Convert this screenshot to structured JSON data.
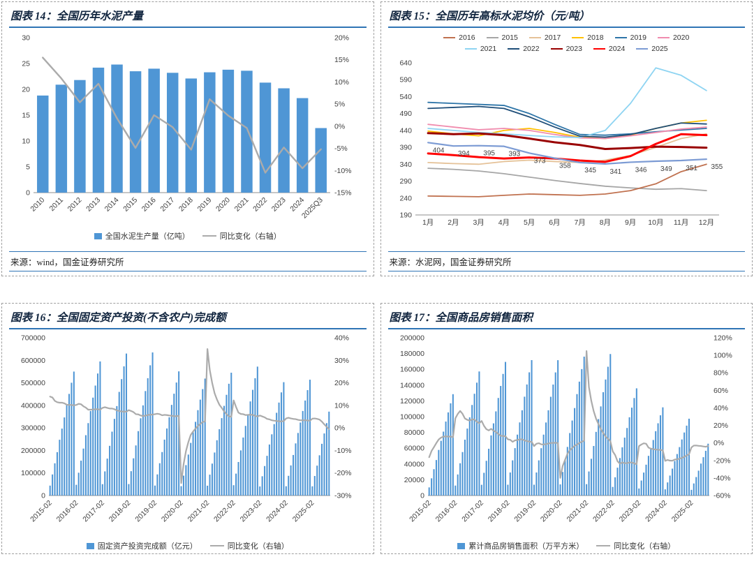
{
  "colors": {
    "accent_blue": "#2e74b5",
    "bar_blue": "#4f96d5",
    "line_gray": "#ababab",
    "title_color": "#10243e"
  },
  "panels": [
    {
      "title": "图表 14：全国历年水泥产量",
      "source": "来源：wind，国金证券研究所"
    },
    {
      "title": "图表 15：全国历年高标水泥均价（元/吨）",
      "source": "来源：水泥网，国金证券研究所"
    },
    {
      "title": "图表 16：全国固定资产投资(不含农户)完成额",
      "source": ""
    },
    {
      "title": "图表 17：全国商品房销售面积",
      "source": ""
    }
  ],
  "chart_data": [
    {
      "type": "bar",
      "title": "全国历年水泥产量",
      "categories": [
        "2010",
        "2011",
        "2012",
        "2013",
        "2014",
        "2015",
        "2016",
        "2017",
        "2018",
        "2019",
        "2020",
        "2021",
        "2022",
        "2023",
        "2024",
        "2025Q3"
      ],
      "bar_series": {
        "name": "全国水泥生产量（亿吨）",
        "color": "#4f96d5",
        "values": [
          18.8,
          20.9,
          21.8,
          24.2,
          24.8,
          23.5,
          24.0,
          23.2,
          22.1,
          23.3,
          23.8,
          23.6,
          21.3,
          20.2,
          18.3,
          12.5
        ]
      },
      "line_series": {
        "name": "同比变化（右轴）",
        "color": "#ababab",
        "width": 2.4,
        "values": [
          15.5,
          10.8,
          5.4,
          9.6,
          1.8,
          -4.9,
          2.5,
          -0.2,
          -5.3,
          6.1,
          2.4,
          -0.4,
          -10.5,
          -4.8,
          -9.5,
          -5.2
        ]
      },
      "left_axis": {
        "min": 0,
        "max": 30,
        "step": 5
      },
      "right_axis": {
        "min": -15,
        "max": 20,
        "step": 5,
        "suffix": "%"
      }
    },
    {
      "type": "line",
      "title": "全国历年高标水泥均价（元/吨）",
      "x_labels": [
        "1月",
        "2月",
        "3月",
        "4月",
        "5月",
        "6月",
        "7月",
        "8月",
        "9月",
        "10月",
        "11月",
        "12月"
      ],
      "y_axis": {
        "min": 190,
        "max": 640,
        "step": 50
      },
      "legend_rows": [
        [
          "2016",
          "2015",
          "2017",
          "2018",
          "2019",
          "2020"
        ],
        [
          "2021",
          "2022",
          "2023",
          "2024",
          "2025"
        ]
      ],
      "series": [
        {
          "name": "2015",
          "color": "#a6a6a6",
          "width": 1.8,
          "values": [
            328,
            325,
            320,
            312,
            302,
            292,
            283,
            275,
            270,
            266,
            268,
            262
          ]
        },
        {
          "name": "2016",
          "color": "#c0714f",
          "width": 1.8,
          "values": [
            246,
            245,
            244,
            248,
            252,
            250,
            248,
            252,
            262,
            282,
            318,
            340
          ]
        },
        {
          "name": "2017",
          "color": "#e5c298",
          "width": 1.8,
          "values": [
            345,
            342,
            340,
            348,
            352,
            348,
            345,
            352,
            366,
            390,
            416,
            430
          ]
        },
        {
          "name": "2018",
          "color": "#ffc000",
          "width": 1.8,
          "values": [
            438,
            430,
            424,
            440,
            446,
            434,
            420,
            416,
            426,
            446,
            462,
            470
          ]
        },
        {
          "name": "2019",
          "color": "#2e75a8",
          "width": 1.8,
          "values": [
            523,
            520,
            517,
            514,
            490,
            458,
            428,
            426,
            430,
            436,
            441,
            446
          ]
        },
        {
          "name": "2020",
          "color": "#f08cae",
          "width": 1.8,
          "values": [
            458,
            450,
            442,
            446,
            440,
            428,
            418,
            416,
            424,
            434,
            444,
            450
          ]
        },
        {
          "name": "2021",
          "color": "#8ed4f2",
          "width": 1.8,
          "values": [
            446,
            440,
            434,
            430,
            425,
            421,
            419,
            440,
            520,
            625,
            603,
            558
          ]
        },
        {
          "name": "2022",
          "color": "#1f4e79",
          "width": 1.8,
          "values": [
            505,
            508,
            511,
            505,
            480,
            450,
            423,
            420,
            428,
            446,
            462,
            459
          ]
        },
        {
          "name": "2023",
          "color": "#990000",
          "width": 3,
          "values": [
            432,
            429,
            431,
            426,
            416,
            405,
            397,
            385,
            388,
            392,
            391,
            389
          ]
        },
        {
          "name": "2024",
          "color": "#ff0000",
          "width": 3,
          "values": [
            372,
            367,
            361,
            357,
            360,
            357,
            351,
            347,
            364,
            400,
            429,
            426
          ]
        },
        {
          "name": "2025",
          "color": "#7c9bd4",
          "width": 2.2,
          "show_labels": true,
          "values": [
            404,
            394,
            395,
            393,
            373,
            358,
            345,
            341,
            346,
            349,
            351,
            355
          ]
        }
      ]
    },
    {
      "type": "bar",
      "title": "全国固定资产投资(不含农户)完成额",
      "x_tick_labels": [
        "2015-02",
        "2016-02",
        "2017-02",
        "2018-02",
        "2019-02",
        "2020-02",
        "2021-02",
        "2022-02",
        "2023-02",
        "2024-02",
        "2025-02"
      ],
      "tick_stride": 11,
      "bar_series": {
        "name": "固定资产投资完成额（亿元）",
        "color": "#4f96d5",
        "values": [
          44000,
          93500,
          143000,
          192500,
          247500,
          297000,
          346500,
          401500,
          451000,
          500500,
          550000,
          47600,
          101200,
          154700,
          208300,
          267800,
          321300,
          374900,
          434400,
          487900,
          541500,
          595000,
          50400,
          107100,
          163800,
          220500,
          283500,
          340200,
          396900,
          459900,
          516600,
          573300,
          630000,
          50800,
          108000,
          165100,
          222300,
          285800,
          342900,
          400100,
          463600,
          520700,
          577900,
          635000,
          44100,
          93700,
          143300,
          192900,
          248000,
          297500,
          347100,
          402200,
          451800,
          501400,
          551000,
          41500,
          88200,
          134900,
          181700,
          233600,
          280300,
          327000,
          378900,
          425600,
          472300,
          519000,
          43600,
          92700,
          141700,
          190800,
          245300,
          294300,
          343400,
          397900,
          446900,
          496000,
          545000,
          45800,
          97200,
          148700,
          200200,
          257400,
          308900,
          360400,
          417600,
          469000,
          520500,
          572000,
          40200,
          85500,
          130800,
          176100,
          226400,
          271600,
          316900,
          367200,
          412500,
          457700,
          503000,
          41100,
          87400,
          133600,
          179900,
          231300,
          277600,
          323800,
          375200,
          421500,
          467700,
          514000,
          40800,
          86700,
          132600,
          178500,
          229500,
          275400,
          321300,
          372300
        ]
      },
      "line_series": {
        "name": "同比变化（右轴）",
        "color": "#ababab",
        "width": 2.2,
        "values": [
          13.9,
          13.5,
          12.0,
          11.4,
          11.2,
          11.2,
          10.9,
          10.3,
          10.2,
          10.2,
          10.0,
          10.2,
          10.7,
          10.5,
          9.6,
          9.0,
          8.1,
          8.1,
          8.2,
          8.3,
          8.3,
          8.1,
          8.9,
          9.2,
          8.9,
          8.6,
          8.6,
          8.3,
          7.8,
          7.5,
          7.3,
          7.2,
          7.2,
          7.9,
          7.5,
          7.0,
          6.1,
          6.0,
          5.5,
          5.3,
          5.4,
          5.7,
          5.9,
          5.9,
          6.1,
          6.3,
          6.1,
          5.6,
          5.8,
          5.7,
          5.5,
          5.4,
          5.2,
          5.2,
          5.4,
          -24.5,
          -16.1,
          -10.3,
          -6.3,
          -3.1,
          -1.6,
          -0.3,
          0.8,
          1.8,
          2.6,
          2.9,
          35.0,
          25.6,
          19.9,
          15.4,
          12.6,
          10.3,
          8.9,
          7.3,
          6.1,
          5.2,
          4.9,
          12.2,
          9.3,
          6.8,
          6.2,
          6.1,
          5.7,
          5.8,
          5.9,
          5.8,
          5.3,
          5.1,
          5.5,
          5.1,
          4.7,
          4.0,
          3.8,
          3.4,
          3.2,
          3.1,
          2.9,
          2.9,
          3.0,
          4.2,
          4.5,
          4.2,
          4.0,
          3.9,
          3.6,
          3.4,
          3.4,
          3.4,
          3.3,
          3.2,
          4.1,
          4.2,
          4.0,
          3.7,
          2.8,
          1.6,
          0.5,
          -0.5
        ]
      },
      "left_axis": {
        "min": 0,
        "max": 700000,
        "step": 100000
      },
      "right_axis": {
        "min": -30,
        "max": 40,
        "step": 10,
        "suffix": "%"
      }
    },
    {
      "type": "bar",
      "title": "全国商品房销售面积",
      "x_tick_labels": [
        "2015-02",
        "2016-02",
        "2017-02",
        "2018-02",
        "2019-02",
        "2020-02",
        "2021-02",
        "2022-02",
        "2023-02",
        "2024-02",
        "2025-02"
      ],
      "tick_stride": 11,
      "bar_series": {
        "name": "累计商品房销售面积（万平方米）",
        "color": "#4f96d5",
        "values": [
          10300,
          21800,
          33400,
          45000,
          57800,
          69400,
          81000,
          93800,
          105400,
          116900,
          128500,
          12600,
          26700,
          40900,
          55100,
          70800,
          84900,
          99100,
          114800,
          129000,
          143100,
          157300,
          13600,
          28800,
          44000,
          59300,
          76200,
          91500,
          106700,
          123700,
          138900,
          154200,
          169400,
          13700,
          29200,
          44600,
          60100,
          77200,
          92700,
          108100,
          125300,
          140800,
          156200,
          171700,
          13700,
          29200,
          44600,
          60000,
          77200,
          92600,
          108100,
          125200,
          140700,
          156100,
          171600,
          14100,
          29900,
          45800,
          61600,
          79200,
          95100,
          110900,
          128600,
          144400,
          160300,
          176100,
          14400,
          30500,
          46600,
          62800,
          80700,
          96900,
          113000,
          131000,
          147100,
          163300,
          179400,
          10900,
          23100,
          35300,
          47500,
          61100,
          73400,
          85600,
          99200,
          111400,
          123600,
          135900,
          8900,
          19000,
          29100,
          39100,
          50300,
          60300,
          70400,
          81600,
          91600,
          101700,
          111800,
          7800,
          16600,
          25300,
          34100,
          43800,
          52600,
          61400,
          71100,
          79900,
          88600,
          97400,
          7200,
          15300,
          23400,
          31500,
          40500,
          48600,
          56700,
          65700
        ]
      },
      "line_series": {
        "name": "同比变化（右轴）",
        "color": "#ababab",
        "width": 2.2,
        "values": [
          -16.3,
          -9.2,
          -4.8,
          -0.2,
          3.9,
          6.1,
          7.2,
          7.5,
          7.2,
          7.4,
          6.5,
          28.2,
          33.1,
          36.5,
          33.2,
          27.9,
          26.4,
          25.5,
          26.9,
          26.8,
          24.3,
          22.5,
          25.1,
          19.5,
          15.7,
          14.3,
          16.1,
          14.0,
          12.5,
          10.3,
          8.2,
          7.9,
          7.7,
          4.1,
          3.6,
          1.3,
          2.9,
          3.3,
          4.2,
          4.0,
          2.9,
          2.2,
          1.4,
          1.3,
          -3.6,
          -0.9,
          -0.3,
          -1.6,
          -1.8,
          -1.3,
          -0.6,
          -0.1,
          0.1,
          0.2,
          -0.1,
          -39.9,
          -26.3,
          -19.3,
          -12.3,
          -8.4,
          -5.8,
          -3.3,
          -1.8,
          0.0,
          1.3,
          2.6,
          104.9,
          63.8,
          48.1,
          36.3,
          27.7,
          21.5,
          15.9,
          11.3,
          7.3,
          4.8,
          1.9,
          -9.6,
          -13.8,
          -20.9,
          -23.6,
          -22.2,
          -23.1,
          -23.0,
          -22.2,
          -22.3,
          -23.3,
          -24.3,
          -3.6,
          -1.8,
          -0.4,
          -0.9,
          -5.3,
          -6.5,
          -7.1,
          -7.5,
          -7.8,
          -8.0,
          -8.5,
          -20.5,
          -19.4,
          -20.2,
          -20.3,
          -19.0,
          -18.6,
          -18.0,
          -17.1,
          -15.8,
          -14.3,
          -12.9,
          -5.1,
          -3.0,
          -2.9,
          -3.3,
          -3.5,
          -4.0,
          -4.4,
          -3.5
        ]
      },
      "left_axis": {
        "min": 0,
        "max": 200000,
        "step": 20000
      },
      "right_axis": {
        "min": -60,
        "max": 120,
        "step": 20,
        "suffix": "%"
      }
    }
  ]
}
